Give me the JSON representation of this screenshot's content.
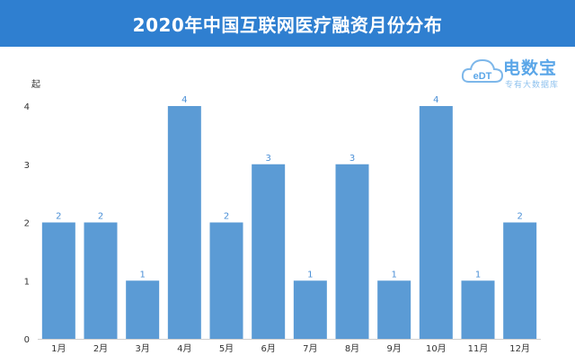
{
  "title": "2020年中国互联网医疗融资月份分布",
  "logo": {
    "brand": "电数宝",
    "tagline": "专有大数据库",
    "mark": "eDT",
    "icon": "cloud-logo-icon"
  },
  "colors": {
    "title_bar": "#2f7fd0",
    "bar": "#5b9bd5",
    "label": "#4a8fd6",
    "axis_text": "#333333",
    "grid": "#e6e6e6"
  },
  "chart_data": {
    "type": "bar",
    "title": "2020年中国互联网医疗融资月份分布",
    "ylabel": "起",
    "xlabel": "",
    "categories": [
      "1月",
      "2月",
      "3月",
      "4月",
      "5月",
      "6月",
      "7月",
      "8月",
      "9月",
      "10月",
      "11月",
      "12月"
    ],
    "values": [
      2,
      2,
      1,
      4,
      2,
      3,
      1,
      3,
      1,
      4,
      1,
      2
    ],
    "ylim": [
      0,
      4
    ],
    "yticks": [
      0,
      1,
      2,
      3,
      4
    ],
    "data_labels": true,
    "grid": false,
    "legend": "none"
  }
}
